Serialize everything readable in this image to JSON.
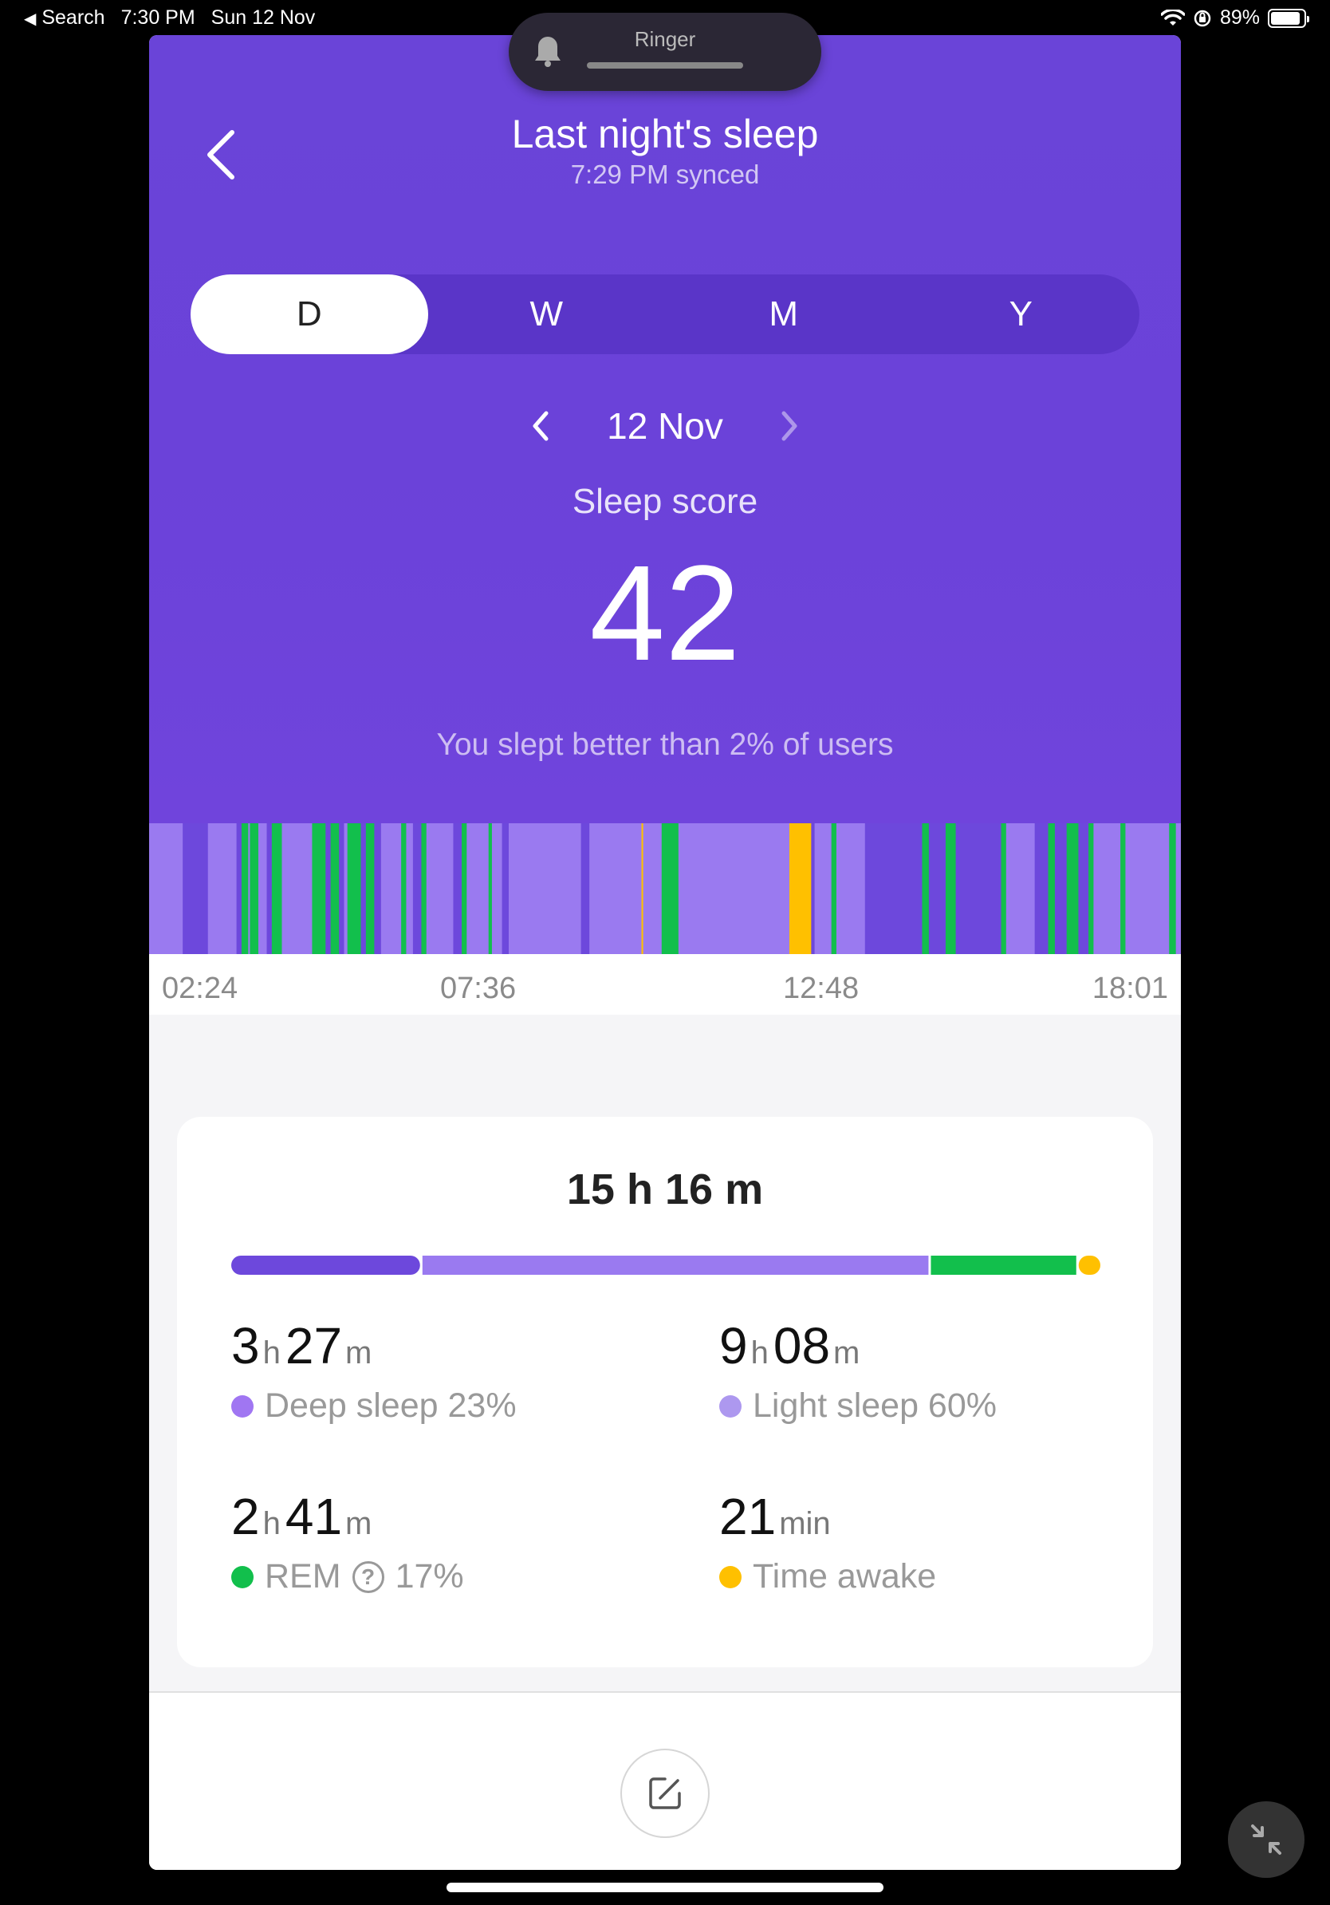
{
  "status_bar": {
    "back_app": "Search",
    "time": "7:30 PM",
    "date": "Sun 12 Nov",
    "battery": "89%",
    "battery_level": 0.89
  },
  "ringer": {
    "label": "Ringer"
  },
  "header": {
    "title": "Last night's sleep",
    "subtitle": "7:29 PM synced"
  },
  "tabs": [
    {
      "label": "D",
      "active": true
    },
    {
      "label": "W",
      "active": false
    },
    {
      "label": "M",
      "active": false
    },
    {
      "label": "Y",
      "active": false
    }
  ],
  "date_nav": {
    "date": "12 Nov"
  },
  "score": {
    "label": "Sleep score",
    "value": "42",
    "comparison": "You slept better than 2% of users"
  },
  "timeline": {
    "start_time": "02:24",
    "end_time": "18:01",
    "ticks": [
      "02:24",
      "07:36",
      "12:48",
      "18:01"
    ],
    "stage_colors": {
      "deep": "#6d48dc",
      "light": "#9a7af0",
      "rem": "#12bf4c",
      "awake": "#ffc000"
    },
    "segments": [
      {
        "stage": "light",
        "d": 2
      },
      {
        "stage": "deep",
        "d": 1.5
      },
      {
        "stage": "light",
        "d": 1.7
      },
      {
        "stage": "deep",
        "d": 0.3
      },
      {
        "stage": "rem",
        "d": 0.4
      },
      {
        "stage": "light",
        "d": 0.1
      },
      {
        "stage": "rem",
        "d": 0.5
      },
      {
        "stage": "light",
        "d": 0.5
      },
      {
        "stage": "deep",
        "d": 0.3
      },
      {
        "stage": "rem",
        "d": 0.6
      },
      {
        "stage": "light",
        "d": 1.8
      },
      {
        "stage": "rem",
        "d": 0.8
      },
      {
        "stage": "deep",
        "d": 0.3
      },
      {
        "stage": "rem",
        "d": 0.5
      },
      {
        "stage": "deep",
        "d": 0.3
      },
      {
        "stage": "light",
        "d": 0.2
      },
      {
        "stage": "rem",
        "d": 0.8
      },
      {
        "stage": "deep",
        "d": 0.3
      },
      {
        "stage": "rem",
        "d": 0.5
      },
      {
        "stage": "deep",
        "d": 0.4
      },
      {
        "stage": "light",
        "d": 1.2
      },
      {
        "stage": "rem",
        "d": 0.3
      },
      {
        "stage": "light",
        "d": 0.4
      },
      {
        "stage": "deep",
        "d": 0.5
      },
      {
        "stage": "rem",
        "d": 0.3
      },
      {
        "stage": "light",
        "d": 0.1
      },
      {
        "stage": "light",
        "d": 1.5
      },
      {
        "stage": "deep",
        "d": 0.5
      },
      {
        "stage": "rem",
        "d": 0.3
      },
      {
        "stage": "light",
        "d": 1.3
      },
      {
        "stage": "rem",
        "d": 0.2
      },
      {
        "stage": "light",
        "d": 0.6
      },
      {
        "stage": "deep",
        "d": 0.4
      },
      {
        "stage": "light",
        "d": 0.2
      },
      {
        "stage": "light",
        "d": 4.1
      },
      {
        "stage": "deep",
        "d": 0.5
      },
      {
        "stage": "light",
        "d": 3.1
      },
      {
        "stage": "awake",
        "d": 0.1
      },
      {
        "stage": "light",
        "d": 1.1
      },
      {
        "stage": "rem",
        "d": 1
      },
      {
        "stage": "light",
        "d": 6.6
      },
      {
        "stage": "awake",
        "d": 1.3
      },
      {
        "stage": "deep",
        "d": 0.2
      },
      {
        "stage": "light",
        "d": 1
      },
      {
        "stage": "rem",
        "d": 0.3
      },
      {
        "stage": "light",
        "d": 1.7
      },
      {
        "stage": "deep",
        "d": 3.4
      },
      {
        "stage": "rem",
        "d": 0.4
      },
      {
        "stage": "deep",
        "d": 1
      },
      {
        "stage": "rem",
        "d": 0.6
      },
      {
        "stage": "deep",
        "d": 2.7
      },
      {
        "stage": "rem",
        "d": 0.3
      },
      {
        "stage": "light",
        "d": 1.7
      },
      {
        "stage": "deep",
        "d": 0.8
      },
      {
        "stage": "rem",
        "d": 0.4
      },
      {
        "stage": "deep",
        "d": 0.7
      },
      {
        "stage": "rem",
        "d": 0.7
      },
      {
        "stage": "deep",
        "d": 0.6
      },
      {
        "stage": "rem",
        "d": 0.3
      },
      {
        "stage": "light",
        "d": 1.6
      },
      {
        "stage": "rem",
        "d": 0.3
      },
      {
        "stage": "light",
        "d": 2.6
      },
      {
        "stage": "rem",
        "d": 0.4
      },
      {
        "stage": "light",
        "d": 0.3
      }
    ]
  },
  "summary": {
    "total_h": "15",
    "total_m": "16",
    "unit_h": "h",
    "unit_m": "m",
    "distribution": [
      {
        "stage": "deep",
        "fraction": 0.22
      },
      {
        "stage": "light",
        "fraction": 0.585
      },
      {
        "stage": "rem",
        "fraction": 0.17
      },
      {
        "stage": "awake",
        "fraction": 0.025
      }
    ],
    "deep": {
      "h": "3",
      "m": "27",
      "label": "Deep sleep 23%"
    },
    "light": {
      "h": "9",
      "m": "08",
      "label": "Light sleep 60%"
    },
    "rem": {
      "h": "2",
      "m": "41",
      "label": "REM",
      "pct": "17%"
    },
    "awake": {
      "value": "21",
      "unit": "min",
      "label": "Time awake"
    }
  }
}
